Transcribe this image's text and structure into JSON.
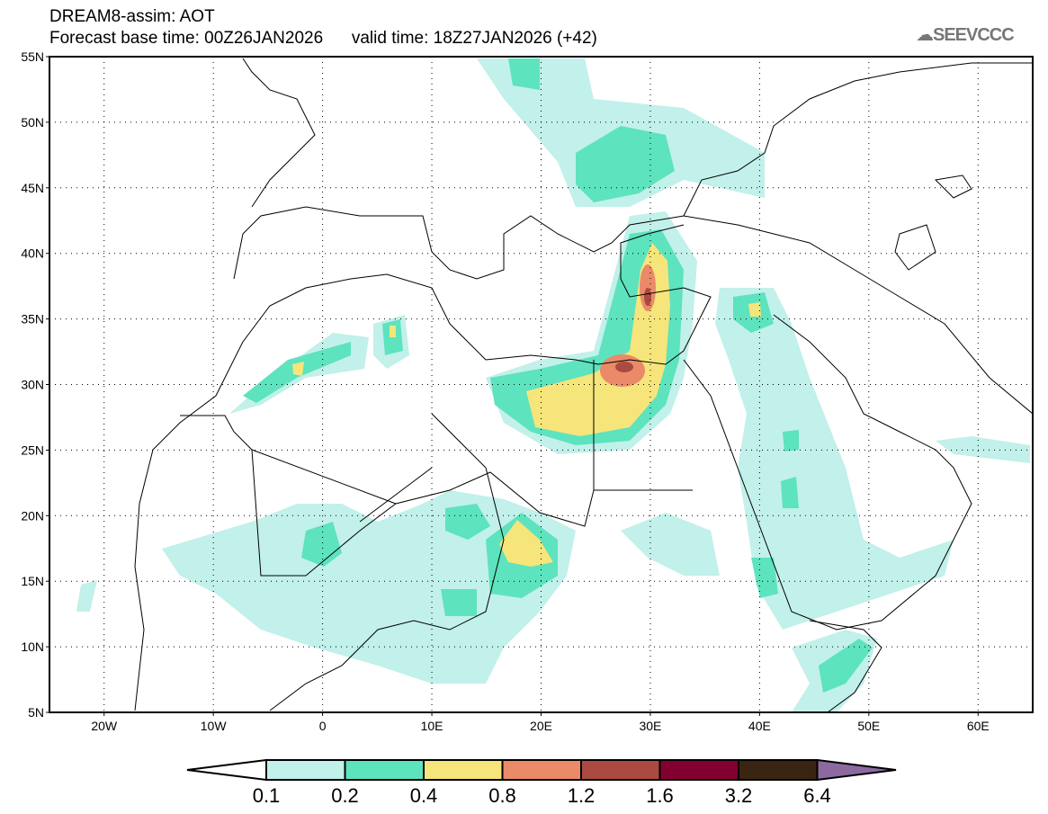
{
  "header": {
    "title": "DREAM8-assim: AOT",
    "base_time": "Forecast base time: 00Z26JAN2026",
    "valid_time": "valid time: 18Z27JAN2026 (+42)",
    "logo_text": "SEEVCCC"
  },
  "map": {
    "lon_range": [
      -25,
      65
    ],
    "lat_range": [
      5,
      55
    ],
    "lat_ticks": [
      {
        "v": 55,
        "label": "55N"
      },
      {
        "v": 50,
        "label": "50N"
      },
      {
        "v": 45,
        "label": "45N"
      },
      {
        "v": 40,
        "label": "40N"
      },
      {
        "v": 35,
        "label": "35N"
      },
      {
        "v": 30,
        "label": "30N"
      },
      {
        "v": 25,
        "label": "25N"
      },
      {
        "v": 20,
        "label": "20N"
      },
      {
        "v": 15,
        "label": "15N"
      },
      {
        "v": 10,
        "label": "10N"
      },
      {
        "v": 5,
        "label": "5N"
      }
    ],
    "lon_ticks": [
      {
        "v": -20,
        "label": "20W"
      },
      {
        "v": -10,
        "label": "10W"
      },
      {
        "v": 0,
        "label": "0"
      },
      {
        "v": 10,
        "label": "10E"
      },
      {
        "v": 20,
        "label": "20E"
      },
      {
        "v": 30,
        "label": "30E"
      },
      {
        "v": 40,
        "label": "40E"
      },
      {
        "v": 50,
        "label": "50E"
      },
      {
        "v": 60,
        "label": "60E"
      }
    ]
  },
  "legend": {
    "levels": [
      "0.1",
      "0.2",
      "0.4",
      "0.8",
      "1.2",
      "1.6",
      "3.2",
      "6.4"
    ],
    "colors": [
      "#c2f0ea",
      "#5de3be",
      "#f5e57a",
      "#ea8a68",
      "#aa4a40",
      "#820030",
      "#3a2412"
    ],
    "under_color": "#ffffff",
    "over_color": "#8c6aa0"
  }
}
